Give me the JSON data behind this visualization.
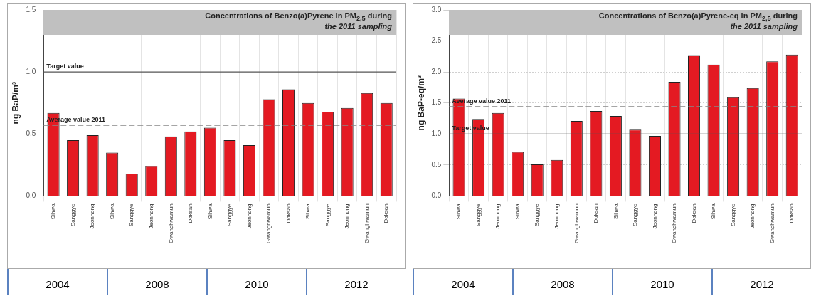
{
  "chart_data": [
    {
      "type": "bar",
      "title": "Concentrations of Benzo(a)Pyrene in PM$_{2,5}$ during",
      "subtitle": "the 2011 sampling",
      "ylabel": "ng BaP/m³",
      "categories": [
        "Sihwa",
        "Sanggye",
        "Jeonnong",
        "Sihwa",
        "Sanggye",
        "Jeonnong",
        "Gwanghwamun",
        "Doksan",
        "Sihwa",
        "Sanggye",
        "Jeonnong",
        "Gwanghwamun",
        "Doksan",
        "Sihwa",
        "Sanggye",
        "Jeonnong",
        "Gwanghwamun",
        "Doksan"
      ],
      "values": [
        0.67,
        0.45,
        0.49,
        0.35,
        0.18,
        0.24,
        0.48,
        0.52,
        0.55,
        0.45,
        0.41,
        0.78,
        0.86,
        0.75,
        0.68,
        0.71,
        0.83,
        0.75
      ],
      "color": "#e41a22",
      "ylim": [
        0,
        1.5
      ],
      "yticks": [
        {
          "value": 0,
          "label": "0.0"
        },
        {
          "value": 0.5,
          "label": "0.5"
        },
        {
          "value": 1,
          "label": "1.0"
        },
        {
          "value": 1.5,
          "label": "1.5"
        }
      ],
      "ref_lines": [
        {
          "axis": "y",
          "value": 1,
          "label": "Target value",
          "color": "#555555",
          "line_style": "solid"
        },
        {
          "axis": "y",
          "value": 0.57,
          "label": "Average value 2011",
          "color": "#888888",
          "line_style": "dashed"
        }
      ],
      "annotations": [
        "2004",
        "2008",
        "2010",
        "2012"
      ],
      "grid": "x",
      "legend": false
    },
    {
      "type": "bar",
      "title": "Concentrations of Benzo(a)Pyrene-eq in PM$_{2,5}$ during",
      "subtitle": "the 2011 sampling",
      "ylabel": "ng BaP-eq/m³",
      "categories": [
        "Sihwa",
        "Sanggye",
        "Jeonnong",
        "Sihwa",
        "Sanggye",
        "Jeonnong",
        "Gwanghwamun",
        "Doksan",
        "Sihwa",
        "Sanggye",
        "Jeonnong",
        "Gwanghwamun",
        "Doksan",
        "Sihwa",
        "Sanggye",
        "Jeonnong",
        "Gwanghwamun",
        "Doksan"
      ],
      "values": [
        1.57,
        1.24,
        1.34,
        0.71,
        0.51,
        0.58,
        1.21,
        1.37,
        1.29,
        1.07,
        0.97,
        1.84,
        2.27,
        2.12,
        1.59,
        1.74,
        2.17,
        2.28
      ],
      "color": "#e41a22",
      "ylim": [
        0,
        3
      ],
      "yticks": [
        {
          "value": 0,
          "label": "0.0"
        },
        {
          "value": 0.5,
          "label": "0.5"
        },
        {
          "value": 1,
          "label": "1.0"
        },
        {
          "value": 1.5,
          "label": "1.5"
        },
        {
          "value": 2,
          "label": "2.0"
        },
        {
          "value": 2.5,
          "label": "2.5"
        },
        {
          "value": 3,
          "label": "3.0"
        }
      ],
      "ref_lines": [
        {
          "axis": "y",
          "value": 1.44,
          "label": "Average value 2011",
          "color": "#888888",
          "line_style": "dashed"
        },
        {
          "axis": "y",
          "value": 1,
          "label": "Target value",
          "color": "#555555",
          "line_style": "solid"
        }
      ],
      "annotations": [
        "2004",
        "2008",
        "2010",
        "2012"
      ],
      "grid": true,
      "legend": false
    }
  ]
}
